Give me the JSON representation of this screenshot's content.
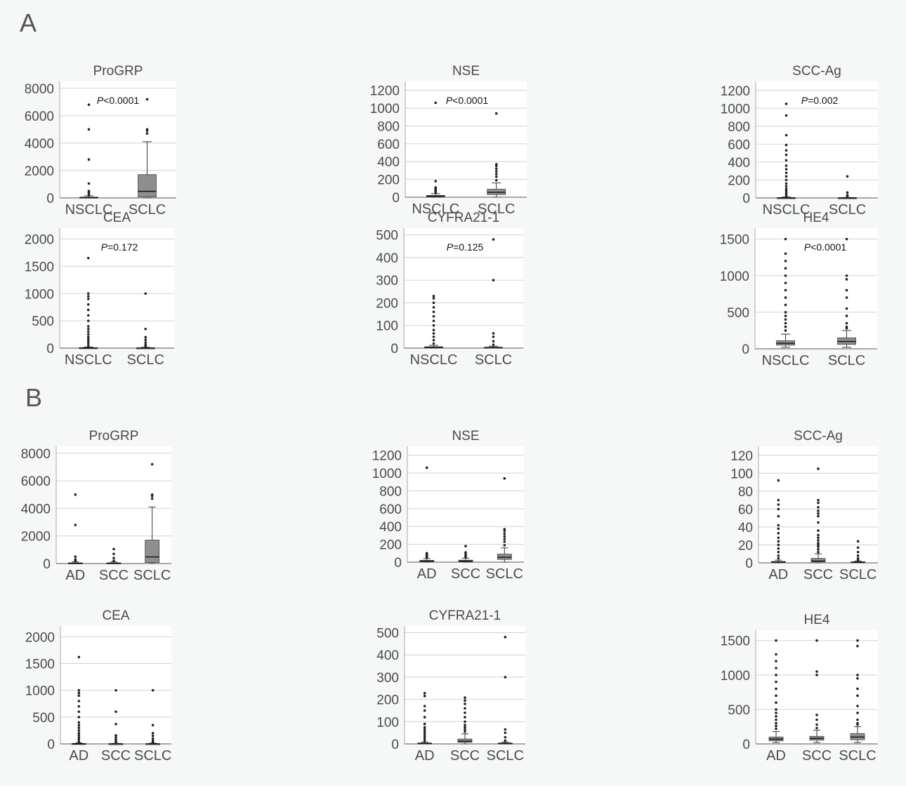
{
  "sections": [
    {
      "label": "A"
    },
    {
      "label": "B"
    }
  ],
  "chart_data": [
    {
      "type": "box",
      "section": "A",
      "title": "ProGRP",
      "categories": [
        "NSCLC",
        "SCLC"
      ],
      "ylim": [
        0,
        8500
      ],
      "yticks": [
        "0",
        "2000",
        "4000",
        "6000",
        "8000"
      ],
      "ytick_values": [
        0,
        2000,
        4000,
        6000,
        8000
      ],
      "p_prefix": "P",
      "p_text": "<0.0001",
      "boxes": [
        {
          "min": 0,
          "q1": 5,
          "median": 20,
          "q3": 60,
          "max": 150,
          "outliers": [
            200,
            300,
            400,
            500,
            1050,
            2800,
            5000,
            6800
          ]
        },
        {
          "min": 0,
          "q1": 70,
          "median": 480,
          "q3": 1700,
          "max": 4100,
          "outliers": [
            4700,
            4900,
            5000,
            7200
          ]
        }
      ]
    },
    {
      "type": "box",
      "section": "A",
      "title": "NSE",
      "categories": [
        "NSCLC",
        "SCLC"
      ],
      "ylim": [
        0,
        1300
      ],
      "yticks": [
        "0",
        "200",
        "400",
        "600",
        "800",
        "1000",
        "1200"
      ],
      "ytick_values": [
        0,
        200,
        400,
        600,
        800,
        1000,
        1200
      ],
      "p_prefix": "P",
      "p_text": "<0.0001",
      "boxes": [
        {
          "min": 0,
          "q1": 5,
          "median": 12,
          "q3": 20,
          "max": 40,
          "outliers": [
            50,
            60,
            70,
            80,
            90,
            100,
            110,
            180,
            1060
          ]
        },
        {
          "min": 0,
          "q1": 30,
          "median": 55,
          "q3": 90,
          "max": 160,
          "outliers": [
            190,
            230,
            260,
            290,
            320,
            350,
            370,
            940
          ]
        }
      ]
    },
    {
      "type": "box",
      "section": "A",
      "title": "SCC-Ag",
      "categories": [
        "NSCLC",
        "SCLC"
      ],
      "ylim": [
        0,
        1300
      ],
      "yticks": [
        "0",
        "200",
        "400",
        "600",
        "800",
        "1000",
        "1200"
      ],
      "ytick_values": [
        0,
        200,
        400,
        600,
        800,
        1000,
        1200
      ],
      "p_prefix": "P",
      "p_text": "=0.002",
      "boxes": [
        {
          "min": 0,
          "q1": 0,
          "median": 1,
          "q3": 3,
          "max": 10,
          "outliers": [
            20,
            40,
            60,
            80,
            100,
            130,
            160,
            200,
            240,
            280,
            320,
            360,
            420,
            480,
            530,
            590,
            700,
            920,
            1050
          ]
        },
        {
          "min": 0,
          "q1": 0,
          "median": 1,
          "q3": 2,
          "max": 5,
          "outliers": [
            10,
            20,
            30,
            60,
            240
          ]
        }
      ]
    },
    {
      "type": "box",
      "section": "A",
      "title": "CEA",
      "categories": [
        "NSCLC",
        "SCLC"
      ],
      "ylim": [
        0,
        2200
      ],
      "yticks": [
        "0",
        "500",
        "1000",
        "1500",
        "2000"
      ],
      "ytick_values": [
        0,
        500,
        1000,
        1500,
        2000
      ],
      "p_prefix": "P",
      "p_text": "=0.172",
      "boxes": [
        {
          "min": 0,
          "q1": 1,
          "median": 3,
          "q3": 8,
          "max": 20,
          "outliers": [
            40,
            80,
            120,
            160,
            200,
            250,
            300,
            350,
            400,
            500,
            600,
            700,
            800,
            900,
            950,
            1000,
            1650
          ]
        },
        {
          "min": 0,
          "q1": 1,
          "median": 2,
          "q3": 5,
          "max": 15,
          "outliers": [
            30,
            60,
            100,
            150,
            200,
            350,
            1000
          ]
        }
      ]
    },
    {
      "type": "box",
      "section": "A",
      "title": "CYFRA21-1",
      "categories": [
        "NSCLC",
        "SCLC"
      ],
      "ylim": [
        0,
        530
      ],
      "yticks": [
        "0",
        "100",
        "200",
        "300",
        "400",
        "500"
      ],
      "ytick_values": [
        0,
        100,
        200,
        300,
        400,
        500
      ],
      "p_prefix": "P",
      "p_text": "=0.125",
      "boxes": [
        {
          "min": 0,
          "q1": 2,
          "median": 3,
          "q3": 6,
          "max": 12,
          "outliers": [
            20,
            35,
            50,
            65,
            80,
            100,
            120,
            140,
            160,
            180,
            200,
            220,
            230
          ]
        },
        {
          "min": 0,
          "q1": 1,
          "median": 2,
          "q3": 4,
          "max": 8,
          "outliers": [
            15,
            30,
            50,
            65,
            300,
            480
          ]
        }
      ]
    },
    {
      "type": "box",
      "section": "A",
      "title": "HE4",
      "categories": [
        "NSCLC",
        "SCLC"
      ],
      "ylim": [
        0,
        1650
      ],
      "yticks": [
        "0",
        "500",
        "1000",
        "1500"
      ],
      "ytick_values": [
        0,
        500,
        1000,
        1500
      ],
      "p_prefix": "P",
      "p_text": "<0.0001",
      "boxes": [
        {
          "min": 20,
          "q1": 50,
          "median": 75,
          "q3": 110,
          "max": 200,
          "outliers": [
            250,
            300,
            350,
            400,
            450,
            500,
            600,
            700,
            800,
            900,
            1000,
            1100,
            1200,
            1300,
            1500
          ]
        },
        {
          "min": 20,
          "q1": 60,
          "median": 100,
          "q3": 150,
          "max": 250,
          "outliers": [
            280,
            300,
            350,
            450,
            550,
            700,
            800,
            950,
            1000,
            1500
          ]
        }
      ]
    },
    {
      "type": "box",
      "section": "B",
      "title": "ProGRP",
      "categories": [
        "AD",
        "SCC",
        "SCLC"
      ],
      "ylim": [
        0,
        8500
      ],
      "yticks": [
        "0",
        "2000",
        "4000",
        "6000",
        "8000"
      ],
      "ytick_values": [
        0,
        2000,
        4000,
        6000,
        8000
      ],
      "boxes": [
        {
          "min": 0,
          "q1": 5,
          "median": 20,
          "q3": 50,
          "max": 120,
          "outliers": [
            200,
            300,
            500,
            2800,
            5000
          ]
        },
        {
          "min": 0,
          "q1": 5,
          "median": 20,
          "q3": 50,
          "max": 120,
          "outliers": [
            200,
            400,
            700,
            1050
          ]
        },
        {
          "min": 0,
          "q1": 70,
          "median": 480,
          "q3": 1700,
          "max": 4100,
          "outliers": [
            4700,
            4900,
            5000,
            7200
          ]
        }
      ]
    },
    {
      "type": "box",
      "section": "B",
      "title": "NSE",
      "categories": [
        "AD",
        "SCC",
        "SCLC"
      ],
      "ylim": [
        0,
        1300
      ],
      "yticks": [
        "0",
        "200",
        "400",
        "600",
        "800",
        "1000",
        "1200"
      ],
      "ytick_values": [
        0,
        200,
        400,
        600,
        800,
        1000,
        1200
      ],
      "boxes": [
        {
          "min": 0,
          "q1": 5,
          "median": 12,
          "q3": 20,
          "max": 40,
          "outliers": [
            50,
            60,
            70,
            80,
            90,
            100,
            1060
          ]
        },
        {
          "min": 0,
          "q1": 5,
          "median": 12,
          "q3": 22,
          "max": 45,
          "outliers": [
            55,
            70,
            90,
            110,
            180
          ]
        },
        {
          "min": 0,
          "q1": 30,
          "median": 55,
          "q3": 90,
          "max": 160,
          "outliers": [
            190,
            230,
            260,
            290,
            320,
            350,
            370,
            940
          ]
        }
      ]
    },
    {
      "type": "box",
      "section": "B",
      "title": "SCC-Ag",
      "categories": [
        "AD",
        "SCC",
        "SCLC"
      ],
      "ylim": [
        0,
        130
      ],
      "yticks": [
        "0",
        "20",
        "40",
        "60",
        "80",
        "100",
        "120"
      ],
      "ytick_values": [
        0,
        20,
        40,
        60,
        80,
        100,
        120
      ],
      "boxes": [
        {
          "min": 0,
          "q1": 0.5,
          "median": 1,
          "q3": 1.5,
          "max": 3,
          "outliers": [
            5,
            8,
            12,
            16,
            20,
            24,
            28,
            33,
            38,
            42,
            52,
            60,
            65,
            70,
            92
          ]
        },
        {
          "min": 0,
          "q1": 1,
          "median": 2,
          "q3": 5,
          "max": 10,
          "outliers": [
            12,
            15,
            18,
            20,
            22,
            25,
            28,
            31,
            36,
            45,
            52,
            55,
            58,
            62,
            67,
            70,
            105
          ]
        },
        {
          "min": 0,
          "q1": 0.3,
          "median": 0.7,
          "q3": 1.2,
          "max": 2,
          "outliers": [
            3,
            5,
            8,
            12,
            17,
            24
          ]
        }
      ]
    },
    {
      "type": "box",
      "section": "B",
      "title": "CEA",
      "categories": [
        "AD",
        "SCC",
        "SCLC"
      ],
      "ylim": [
        0,
        2200
      ],
      "yticks": [
        "0",
        "500",
        "1000",
        "1500",
        "2000"
      ],
      "ytick_values": [
        0,
        500,
        1000,
        1500,
        2000
      ],
      "boxes": [
        {
          "min": 0,
          "q1": 1,
          "median": 3,
          "q3": 8,
          "max": 20,
          "outliers": [
            40,
            80,
            120,
            160,
            200,
            250,
            300,
            350,
            400,
            500,
            600,
            700,
            800,
            900,
            950,
            1000,
            1620
          ]
        },
        {
          "min": 0,
          "q1": 1,
          "median": 2,
          "q3": 4,
          "max": 10,
          "outliers": [
            20,
            50,
            80,
            120,
            160,
            370,
            600,
            1000
          ]
        },
        {
          "min": 0,
          "q1": 1,
          "median": 2,
          "q3": 5,
          "max": 15,
          "outliers": [
            30,
            60,
            100,
            150,
            200,
            350,
            1000
          ]
        }
      ]
    },
    {
      "type": "box",
      "section": "B",
      "title": "CYFRA21-1",
      "categories": [
        "AD",
        "SCC",
        "SCLC"
      ],
      "ylim": [
        0,
        530
      ],
      "yticks": [
        "0",
        "100",
        "200",
        "300",
        "400",
        "500"
      ],
      "ytick_values": [
        0,
        100,
        200,
        300,
        400,
        500
      ],
      "boxes": [
        {
          "min": 0,
          "q1": 1,
          "median": 2,
          "q3": 4,
          "max": 8,
          "outliers": [
            15,
            25,
            35,
            45,
            55,
            65,
            75,
            90,
            120,
            150,
            170,
            215,
            228
          ]
        },
        {
          "min": 0,
          "q1": 7,
          "median": 12,
          "q3": 22,
          "max": 45,
          "outliers": [
            55,
            65,
            75,
            85,
            100,
            120,
            140,
            160,
            180,
            195,
            208
          ]
        },
        {
          "min": 0,
          "q1": 1,
          "median": 2,
          "q3": 4,
          "max": 8,
          "outliers": [
            15,
            30,
            50,
            65,
            300,
            480
          ]
        }
      ]
    },
    {
      "type": "box",
      "section": "B",
      "title": "HE4",
      "categories": [
        "AD",
        "SCC",
        "SCLC"
      ],
      "ylim": [
        0,
        1650
      ],
      "yticks": [
        "0",
        "500",
        "1000",
        "1500"
      ],
      "ytick_values": [
        0,
        500,
        1000,
        1500
      ],
      "boxes": [
        {
          "min": 20,
          "q1": 45,
          "median": 70,
          "q3": 100,
          "max": 180,
          "outliers": [
            220,
            260,
            300,
            350,
            400,
            450,
            500,
            600,
            700,
            800,
            900,
            1000,
            1100,
            1200,
            1300,
            1500
          ]
        },
        {
          "min": 20,
          "q1": 55,
          "median": 80,
          "q3": 110,
          "max": 200,
          "outliers": [
            230,
            280,
            350,
            420,
            1000,
            1050,
            1500
          ]
        },
        {
          "min": 20,
          "q1": 60,
          "median": 100,
          "q3": 150,
          "max": 250,
          "outliers": [
            280,
            300,
            350,
            450,
            550,
            700,
            800,
            950,
            1000,
            1420,
            1500
          ]
        }
      ]
    }
  ]
}
